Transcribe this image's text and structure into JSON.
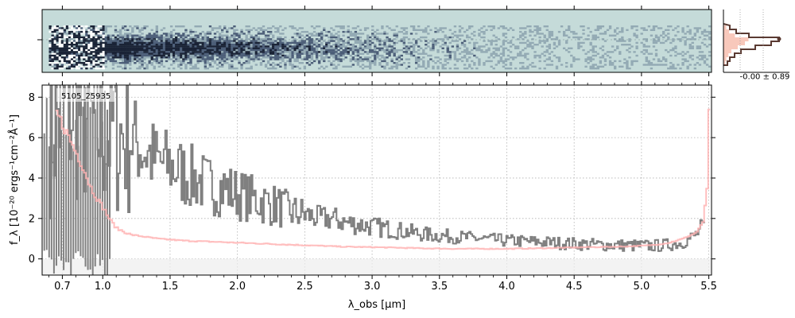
{
  "chart_data": [
    {
      "type": "heatmap",
      "name": "2d-spectrum",
      "colormap": "bone-teal",
      "background": "#c5dbd9",
      "xlim": [
        0.55,
        5.52
      ],
      "ylim": [
        -1,
        1
      ]
    },
    {
      "type": "line",
      "name": "1d-spectrum",
      "object_id": "5105_25935",
      "xlabel": "λ_obs [μm]",
      "ylabel": "f_λ [10⁻²⁰ ergs⁻¹cm⁻²Å⁻¹]",
      "xlim": [
        0.55,
        5.52
      ],
      "ylim": [
        -0.8,
        8.6
      ],
      "xticks": [
        0.7,
        1.0,
        1.5,
        2.0,
        2.5,
        3.0,
        3.5,
        4.0,
        4.5,
        5.0,
        5.5
      ],
      "xtick_labels": [
        "0.7",
        "1.0",
        "1.5",
        "2.0",
        "2.5",
        "3.0",
        "3.5",
        "4.0",
        "4.5",
        "5.0",
        "5.5"
      ],
      "yticks": [
        0,
        2,
        4,
        6,
        8
      ],
      "ytick_labels": [
        "0",
        "2",
        "4",
        "6",
        "8"
      ],
      "grid": true,
      "series": [
        {
          "color": "#808080",
          "x": [
            0.6,
            0.7,
            0.8,
            0.9,
            1.0,
            1.1,
            1.2,
            1.3,
            1.4,
            1.5,
            1.6,
            1.7,
            1.8,
            1.9,
            2.0,
            2.1,
            2.2,
            2.3,
            2.4,
            2.5,
            2.6,
            2.7,
            2.8,
            2.9,
            3.0,
            3.1,
            3.2,
            3.3,
            3.4,
            3.5,
            3.6,
            3.7,
            3.8,
            3.9,
            4.0,
            4.1,
            4.2,
            4.3,
            4.4,
            4.5,
            4.6,
            4.7,
            4.8,
            4.9,
            5.0,
            5.1,
            5.2,
            5.3,
            5.4,
            5.45,
            5.5
          ],
          "y": [
            6.5,
            7.5,
            7.8,
            6.5,
            6.6,
            6.2,
            6.0,
            5.4,
            4.8,
            4.6,
            4.2,
            3.9,
            3.6,
            3.5,
            3.2,
            3.0,
            2.8,
            2.6,
            2.3,
            2.2,
            2.0,
            2.0,
            1.8,
            1.7,
            1.6,
            1.5,
            1.4,
            1.3,
            1.2,
            1.15,
            1.1,
            1.05,
            1.0,
            0.95,
            0.9,
            0.88,
            0.85,
            0.82,
            0.78,
            0.75,
            0.72,
            0.7,
            0.68,
            0.66,
            0.65,
            0.65,
            0.7,
            0.8,
            1.2,
            1.6,
            0.6
          ]
        },
        {
          "color": "#ffb3b3",
          "x": [
            0.65,
            0.7,
            0.75,
            0.8,
            0.85,
            0.9,
            0.95,
            1.0,
            1.05,
            1.1,
            1.2,
            1.3,
            1.4,
            1.5,
            1.6,
            1.8,
            2.0,
            2.2,
            2.4,
            2.6,
            2.8,
            3.0,
            3.2,
            3.4,
            3.6,
            3.8,
            4.0,
            4.2,
            4.4,
            4.6,
            4.8,
            5.0,
            5.1,
            5.2,
            5.3,
            5.4,
            5.45,
            5.48,
            5.5
          ],
          "y": [
            7.2,
            6.6,
            5.9,
            5.2,
            4.5,
            3.6,
            3.0,
            2.5,
            1.9,
            1.5,
            1.2,
            1.1,
            1.0,
            0.95,
            0.9,
            0.85,
            0.8,
            0.75,
            0.7,
            0.65,
            0.6,
            0.58,
            0.55,
            0.52,
            0.5,
            0.5,
            0.5,
            0.52,
            0.55,
            0.58,
            0.6,
            0.65,
            0.7,
            0.8,
            1.0,
            1.3,
            1.8,
            3.5,
            8.5
          ]
        }
      ]
    },
    {
      "type": "histogram",
      "name": "profile-panel",
      "annotation": "-0.00 ± 0.89"
    }
  ]
}
